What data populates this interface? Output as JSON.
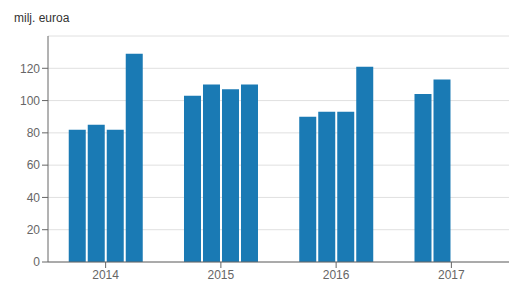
{
  "chart_data": {
    "type": "bar",
    "y_label": "milj. euroa",
    "categories": [
      "2014",
      "2015",
      "2016",
      "2017"
    ],
    "series": [
      {
        "values": [
          82,
          103,
          90,
          104
        ]
      },
      {
        "values": [
          85,
          110,
          93,
          113
        ]
      },
      {
        "values": [
          82,
          107,
          93,
          null
        ]
      },
      {
        "values": [
          129,
          110,
          121,
          null
        ]
      }
    ],
    "color": "#1a7ab4",
    "ylim": [
      0,
      140
    ],
    "yticks": [
      0,
      20,
      40,
      60,
      80,
      100,
      120
    ],
    "grid": true
  }
}
